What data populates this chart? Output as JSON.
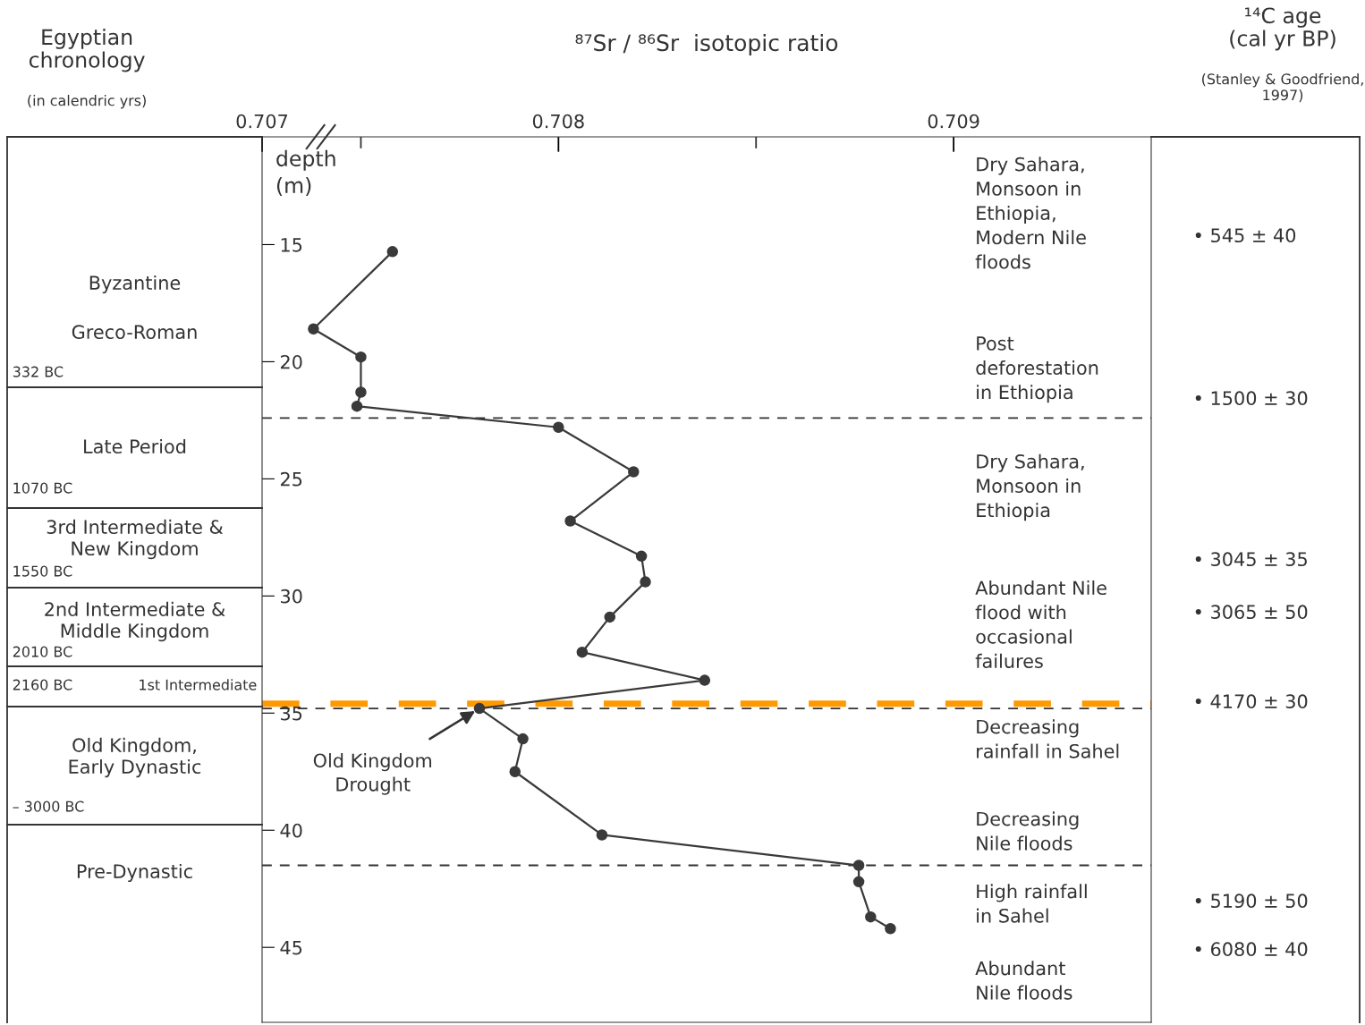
{
  "chart_data": [
    {
      "type": "other",
      "title": "Egyptian\nchronology",
      "subtitle": "(in calendric yrs)",
      "annotations": [
        "Byzantine",
        "Greco-Roman",
        "332 BC",
        "Late Period",
        "1070 BC",
        "3rd Intermediate &\nNew Kingdom",
        "1550 BC",
        "2nd Intermediate &\nMiddle Kingdom",
        "2010 BC",
        "2160 BC",
        "1st Intermediate",
        "Old Kingdom,\nEarly Dynastic",
        "– 3000 BC",
        "Pre-Dynastic"
      ]
    },
    {
      "type": "line",
      "title": "⁸⁷Sr / ⁸⁶Sr  isotopic ratio",
      "ylabel": "depth\n(m)",
      "color": "#3a3a3a",
      "marker": "circle",
      "line_style": "solid",
      "grid": false,
      "legend": false,
      "x": [
        0.70758,
        0.70738,
        0.7075,
        0.7075,
        0.70749,
        0.708,
        0.70819,
        0.70803,
        0.70821,
        0.70822,
        0.70813,
        0.70806,
        0.70837,
        0.7078,
        0.70791,
        0.70789,
        0.70811,
        0.70876,
        0.70876,
        0.70879,
        0.70884
      ],
      "values": [
        15.3,
        18.6,
        19.8,
        21.3,
        21.9,
        22.8,
        24.7,
        26.8,
        28.3,
        29.4,
        30.9,
        32.4,
        33.6,
        34.8,
        36.1,
        37.5,
        40.2,
        41.5,
        42.2,
        43.7,
        44.2
      ],
      "xlim": [
        0.70725,
        0.7095
      ],
      "xticks": [
        {
          "value": 0.70725,
          "label": "0.707"
        },
        {
          "value": 0.7075,
          "label": null
        },
        0.708,
        {
          "value": 0.7085,
          "label": null
        },
        0.709
      ],
      "ylim": [
        48.2,
        10.4
      ],
      "yticks": [
        15,
        20,
        25,
        30,
        35,
        40,
        45
      ],
      "ref_lines": [
        {
          "axis": "y",
          "value": 22.4,
          "color": "#333333",
          "line_style": "dashed"
        },
        {
          "axis": "y",
          "value": 34.8,
          "color": "#333333",
          "line_style": "dashed"
        },
        {
          "axis": "y",
          "value": 34.6,
          "color": "#ff9900",
          "line_style": "dashed"
        },
        {
          "axis": "y",
          "value": 41.5,
          "color": "#333333",
          "line_style": "dashed"
        }
      ],
      "annotations": [
        {
          "text": "Old Kingdom\nDrought",
          "x": 0.7078,
          "y": 34.8
        },
        "Dry Sahara,\nMonsoon in\nEthiopia,\nModern Nile\nfloods",
        "Post\ndeforestation\nin Ethiopia",
        "Dry Sahara,\nMonsoon in\nEthiopia",
        "Abundant Nile\nflood with\noccasional\nfailures",
        "Decreasing\nrainfall in Sahel",
        "Decreasing\nNile floods",
        "High rainfall\nin Sahel",
        "Abundant\nNile floods"
      ]
    },
    {
      "type": "other",
      "title": "¹⁴C age\n(cal yr BP)",
      "subtitle": "(Stanley & Goodfriend,\n1997)",
      "annotations": [
        "• 545 ± 40",
        "• 1500 ± 30",
        "• 3045 ± 35",
        "• 3065 ± 50",
        "• 4170 ± 30",
        "• 5190 ± 50",
        "• 6080 ± 40"
      ]
    }
  ]
}
